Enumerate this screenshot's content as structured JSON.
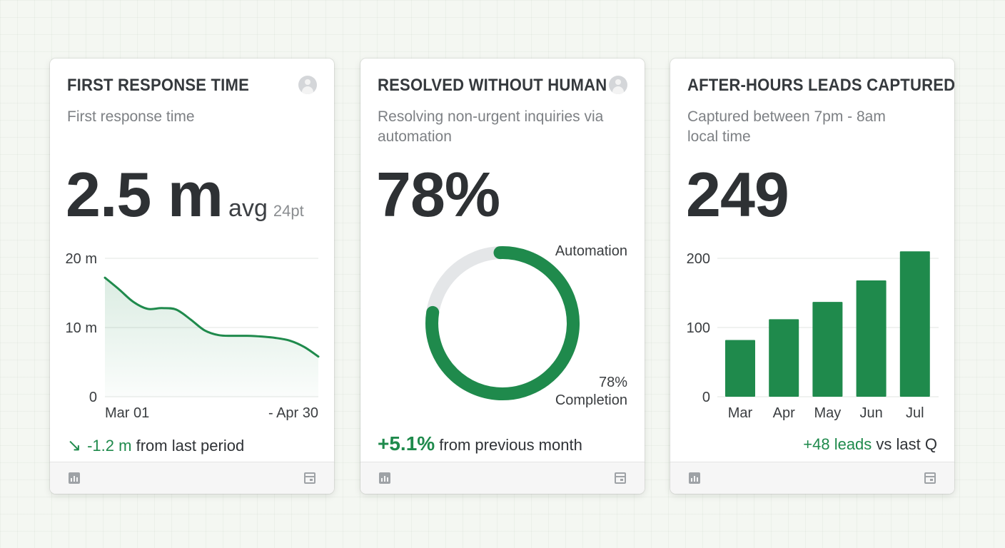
{
  "colors": {
    "accent": "#1f8a4c",
    "track": "#e4e6e8"
  },
  "cards": [
    {
      "title": "FIRST RESPONSE TIME",
      "subtitle": "First response time",
      "big_value": "2.5 m",
      "unit": "avg",
      "unit_note": "24pt",
      "delta": "-1.2 m",
      "delta_suffix": "from last period",
      "delta_icon": "arrow-down-right-icon"
    },
    {
      "title": "RESOLVED WITHOUT HUMAN",
      "subtitle": "Resolving non-urgent inquiries via automation",
      "big_value": "78%",
      "delta": "+5.1%",
      "delta_suffix": "from previous month"
    },
    {
      "title": "AFTER-HOURS LEADS CAPTURED",
      "subtitle": "Captured between 7pm - 8am local time",
      "big_value": "249",
      "delta": "+48 leads",
      "delta_suffix": "vs last Q"
    }
  ],
  "footer_icons": {
    "left": "bar-chart-icon",
    "right": "window-icon"
  },
  "chart_data": [
    {
      "type": "area",
      "x_labels": [
        "Mar 01",
        "- Apr 30"
      ],
      "x": [
        0,
        4,
        8,
        12,
        16,
        20,
        24,
        28,
        32,
        36,
        40,
        44,
        48,
        52,
        56,
        60
      ],
      "values": [
        17.2,
        15.5,
        13.7,
        12.7,
        12.8,
        12.6,
        11.2,
        9.6,
        8.9,
        8.8,
        8.8,
        8.7,
        8.5,
        8.1,
        7.2,
        5.8
      ],
      "ylim": [
        0,
        20
      ],
      "y_ticks": [
        "20 m",
        "10 m",
        "0"
      ],
      "y_tick_values": [
        20,
        10,
        0
      ],
      "grid": true
    },
    {
      "type": "pie",
      "slices": [
        {
          "name": "Automation",
          "value": 78
        },
        {
          "name": "",
          "value": 22
        }
      ],
      "center_label_value": "78%",
      "center_label_text": "Completion"
    },
    {
      "type": "bar",
      "categories": [
        "Mar",
        "Apr",
        "May",
        "Jun",
        "Jul"
      ],
      "values": [
        82,
        112,
        137,
        168,
        210
      ],
      "ylim": [
        0,
        200
      ],
      "y_ticks": [
        "200",
        "100",
        "0"
      ],
      "y_tick_values": [
        200,
        100,
        0
      ],
      "grid": true
    }
  ]
}
